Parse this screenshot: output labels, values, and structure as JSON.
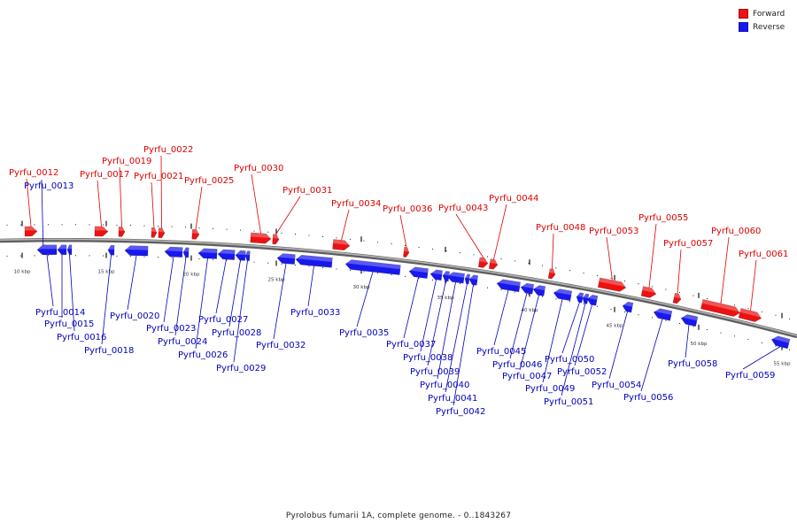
{
  "colors": {
    "forward": "#ee1111",
    "reverse": "#1818ee",
    "backbone": "#8a8a8a",
    "tick": "#222222",
    "label_forward": "#dd0000",
    "label_reverse": "#0000bb"
  },
  "legend": [
    {
      "label": "Forward",
      "color": "#ee1111"
    },
    {
      "label": "Reverse",
      "color": "#1818ee"
    }
  ],
  "caption": "Pyrolobus fumarii 1A, complete genome. - 0..1843267",
  "scale_labels": [
    "10 kbp",
    "15 kbp",
    "20 kbp",
    "25 kbp",
    "30 kbp",
    "35 kbp",
    "40 kbp",
    "45 kbp",
    "50 kbp",
    "55 kbp"
  ],
  "genes": [
    {
      "name": "Pyrfu_0012",
      "strand": "forward"
    },
    {
      "name": "Pyrfu_0013",
      "strand": "reverse"
    },
    {
      "name": "Pyrfu_0014",
      "strand": "reverse"
    },
    {
      "name": "Pyrfu_0015",
      "strand": "reverse"
    },
    {
      "name": "Pyrfu_0016",
      "strand": "reverse"
    },
    {
      "name": "Pyrfu_0017",
      "strand": "forward"
    },
    {
      "name": "Pyrfu_0018",
      "strand": "reverse"
    },
    {
      "name": "Pyrfu_0019",
      "strand": "forward"
    },
    {
      "name": "Pyrfu_0020",
      "strand": "reverse"
    },
    {
      "name": "Pyrfu_0021",
      "strand": "forward"
    },
    {
      "name": "Pyrfu_0022",
      "strand": "forward"
    },
    {
      "name": "Pyrfu_0023",
      "strand": "reverse"
    },
    {
      "name": "Pyrfu_0024",
      "strand": "reverse"
    },
    {
      "name": "Pyrfu_0025",
      "strand": "forward"
    },
    {
      "name": "Pyrfu_0026",
      "strand": "reverse"
    },
    {
      "name": "Pyrfu_0027",
      "strand": "reverse"
    },
    {
      "name": "Pyrfu_0028",
      "strand": "reverse"
    },
    {
      "name": "Pyrfu_0029",
      "strand": "reverse"
    },
    {
      "name": "Pyrfu_0030",
      "strand": "forward"
    },
    {
      "name": "Pyrfu_0031",
      "strand": "forward"
    },
    {
      "name": "Pyrfu_0032",
      "strand": "reverse"
    },
    {
      "name": "Pyrfu_0033",
      "strand": "reverse"
    },
    {
      "name": "Pyrfu_0034",
      "strand": "forward"
    },
    {
      "name": "Pyrfu_0035",
      "strand": "reverse"
    },
    {
      "name": "Pyrfu_0036",
      "strand": "forward"
    },
    {
      "name": "Pyrfu_0037",
      "strand": "reverse"
    },
    {
      "name": "Pyrfu_0038",
      "strand": "reverse"
    },
    {
      "name": "Pyrfu_0039",
      "strand": "reverse"
    },
    {
      "name": "Pyrfu_0040",
      "strand": "reverse"
    },
    {
      "name": "Pyrfu_0041",
      "strand": "reverse"
    },
    {
      "name": "Pyrfu_0042",
      "strand": "reverse"
    },
    {
      "name": "Pyrfu_0043",
      "strand": "forward"
    },
    {
      "name": "Pyrfu_0044",
      "strand": "forward"
    },
    {
      "name": "Pyrfu_0045",
      "strand": "reverse"
    },
    {
      "name": "Pyrfu_0046",
      "strand": "reverse"
    },
    {
      "name": "Pyrfu_0047",
      "strand": "reverse"
    },
    {
      "name": "Pyrfu_0048",
      "strand": "forward"
    },
    {
      "name": "Pyrfu_0049",
      "strand": "reverse"
    },
    {
      "name": "Pyrfu_0050",
      "strand": "reverse"
    },
    {
      "name": "Pyrfu_0051",
      "strand": "reverse"
    },
    {
      "name": "Pyrfu_0052",
      "strand": "reverse"
    },
    {
      "name": "Pyrfu_0053",
      "strand": "forward"
    },
    {
      "name": "Pyrfu_0054",
      "strand": "reverse"
    },
    {
      "name": "Pyrfu_0055",
      "strand": "forward"
    },
    {
      "name": "Pyrfu_0056",
      "strand": "reverse"
    },
    {
      "name": "Pyrfu_0057",
      "strand": "forward"
    },
    {
      "name": "Pyrfu_0058",
      "strand": "reverse"
    },
    {
      "name": "Pyrfu_0059",
      "strand": "reverse"
    },
    {
      "name": "Pyrfu_0060",
      "strand": "forward"
    },
    {
      "name": "Pyrfu_0061",
      "strand": "forward"
    }
  ]
}
